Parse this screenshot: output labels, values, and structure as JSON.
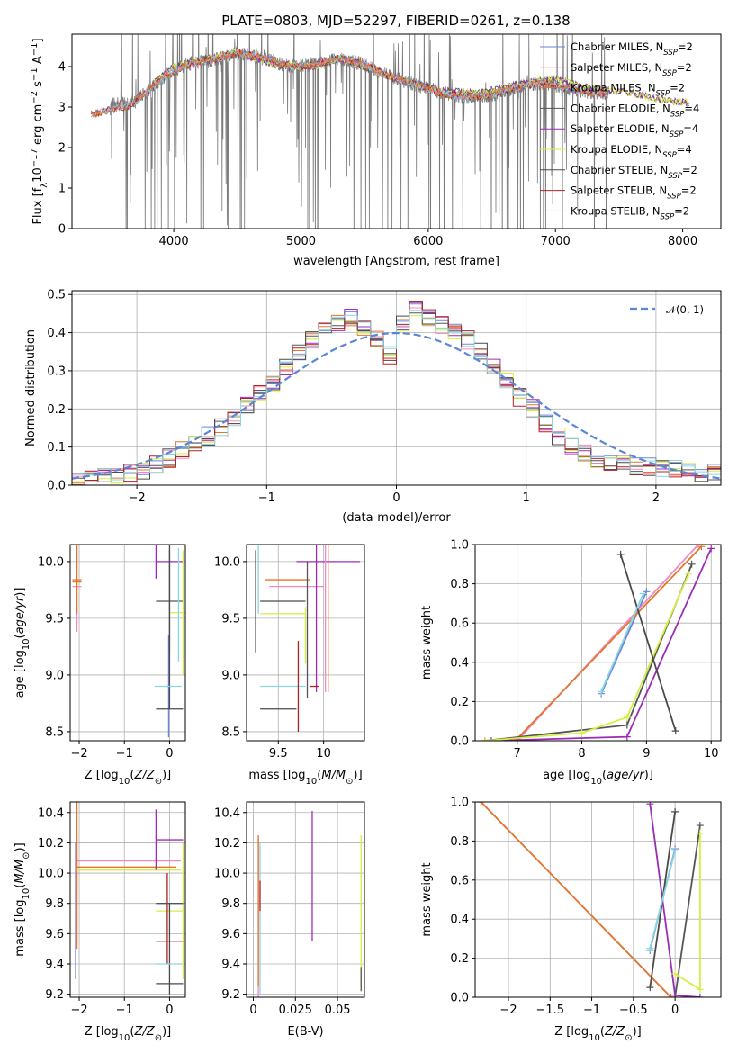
{
  "title": "PLATE=0803, MJD=52297, FIBERID=0261, z=0.138",
  "colors": [
    "#6a83e0",
    "#f18ac0",
    "#e1772b",
    "#555555",
    "#9b2db5",
    "#d4ef42",
    "#4a4a4a",
    "#b22222",
    "#8ad6dd"
  ],
  "legend": [
    {
      "pre": "Chabrier MILES, N",
      "sub": "SSP",
      "post": "=2"
    },
    {
      "pre": "Salpeter MILES, N",
      "sub": "SSP",
      "post": "=2"
    },
    {
      "pre": "Kroupa MILES, N",
      "sub": "SSP",
      "post": "=2"
    },
    {
      "pre": "Chabrier ELODIE, N",
      "sub": "SSP",
      "post": "=4"
    },
    {
      "pre": "Salpeter ELODIE, N",
      "sub": "SSP",
      "post": "=4"
    },
    {
      "pre": "Kroupa ELODIE, N",
      "sub": "SSP",
      "post": "=4"
    },
    {
      "pre": "Chabrier STELIB, N",
      "sub": "SSP",
      "post": "=2"
    },
    {
      "pre": "Salpeter STELIB, N",
      "sub": "SSP",
      "post": "=2"
    },
    {
      "pre": "Kroupa STELIB, N",
      "sub": "SSP",
      "post": "=2"
    }
  ],
  "legend_normal": "𝒩(0, 1)",
  "chart_data": [
    {
      "type": "line",
      "id": "spectrum",
      "xlabel": "wavelength [Angstrom, rest frame]",
      "ylabel": "Flux [f_λ 10^-17 erg cm^-2 s^-1 A^-1]",
      "xlim": [
        3200,
        8300
      ],
      "ylim": [
        0,
        4.8
      ],
      "xticks": [
        4000,
        5000,
        6000,
        7000,
        8000
      ],
      "yticks": [
        0,
        1,
        2,
        3,
        4
      ],
      "continuum": [
        [
          3350,
          3.0
        ],
        [
          3500,
          3.05
        ],
        [
          3650,
          3.1
        ],
        [
          3800,
          3.4
        ],
        [
          3950,
          3.8
        ],
        [
          4100,
          4.05
        ],
        [
          4300,
          4.15
        ],
        [
          4500,
          4.35
        ],
        [
          4700,
          4.2
        ],
        [
          4900,
          4.0
        ],
        [
          5100,
          4.05
        ],
        [
          5300,
          4.2
        ],
        [
          5500,
          4.05
        ],
        [
          5700,
          3.75
        ],
        [
          5900,
          3.55
        ],
        [
          6100,
          3.35
        ],
        [
          6300,
          3.25
        ],
        [
          6500,
          3.3
        ],
        [
          6700,
          3.5
        ],
        [
          6900,
          3.6
        ],
        [
          7100,
          3.45
        ],
        [
          7300,
          3.35
        ]
      ],
      "elodie_continuum": [
        [
          3850,
          3.6
        ],
        [
          4000,
          4.0
        ],
        [
          4200,
          4.15
        ],
        [
          4500,
          4.35
        ],
        [
          4800,
          4.05
        ],
        [
          5100,
          4.0
        ],
        [
          5300,
          4.2
        ],
        [
          5500,
          4.0
        ],
        [
          5800,
          3.65
        ],
        [
          6100,
          3.4
        ],
        [
          6400,
          3.35
        ],
        [
          6700,
          3.55
        ],
        [
          7000,
          3.7
        ],
        [
          7300,
          3.45
        ],
        [
          7600,
          3.35
        ],
        [
          7800,
          3.2
        ],
        [
          8050,
          3.1
        ]
      ]
    },
    {
      "type": "bar",
      "id": "residuals",
      "xlabel": "(data-model)/error",
      "ylabel": "Normed distribution",
      "xlim": [
        -2.5,
        2.5
      ],
      "ylim": [
        0,
        0.51
      ],
      "xticks": [
        -2,
        -1,
        0,
        1,
        2
      ],
      "yticks": [
        0.0,
        0.1,
        0.2,
        0.3,
        0.4,
        0.5
      ],
      "bin_width": 0.1,
      "bins_start": -2.5,
      "hist": [
        0.015,
        0.02,
        0.02,
        0.025,
        0.03,
        0.04,
        0.055,
        0.07,
        0.09,
        0.115,
        0.13,
        0.15,
        0.18,
        0.21,
        0.24,
        0.27,
        0.31,
        0.35,
        0.38,
        0.4,
        0.43,
        0.44,
        0.41,
        0.38,
        0.34,
        0.42,
        0.46,
        0.44,
        0.42,
        0.4,
        0.38,
        0.35,
        0.31,
        0.27,
        0.23,
        0.2,
        0.16,
        0.13,
        0.1,
        0.085,
        0.07,
        0.06,
        0.055,
        0.05,
        0.05,
        0.045,
        0.04,
        0.035,
        0.03,
        0.03
      ],
      "normal": {
        "mean": 0,
        "sigma": 1
      }
    },
    {
      "type": "scatter",
      "id": "age_vs_Z",
      "xlabel": "Z [log10(Z/Z⊙)]",
      "ylabel": "age [log10(age/yr)]",
      "xlim": [
        -2.2,
        0.35
      ],
      "ylim": [
        8.42,
        10.15
      ],
      "xticks": [
        -2,
        -1,
        0
      ],
      "yticks": [
        8.5,
        9.0,
        9.5,
        10.0
      ],
      "points": [
        {
          "x": -0.02,
          "y": 8.9,
          "xerr": 0.05,
          "yerr": 0.45,
          "c": 0
        },
        {
          "x": -2.05,
          "y": 9.78,
          "xerr": 0.1,
          "yerr": 0.4,
          "c": 1
        },
        {
          "x": -2.05,
          "y": 9.84,
          "xerr": 0.1,
          "yerr": 0.3,
          "c": 2
        },
        {
          "x": -2.05,
          "y": 9.82,
          "xerr": 0.1,
          "yerr": 0.0,
          "c": 2
        },
        {
          "x": 0.0,
          "y": 9.65,
          "xerr": 0.3,
          "yerr": 0.45,
          "c": 3
        },
        {
          "x": -0.3,
          "y": 10.0,
          "xerr": 0.0,
          "yerr": 0.15,
          "c": 4
        },
        {
          "x": 0.0,
          "y": 10.0,
          "xerr": 0.3,
          "yerr": 0.0,
          "c": 4
        },
        {
          "x": 0.3,
          "y": 9.55,
          "xerr": 0.3,
          "yerr": 0.55,
          "c": 5
        },
        {
          "x": 0.0,
          "y": 8.7,
          "xerr": 0.3,
          "yerr": 0.0,
          "c": 6
        },
        {
          "x": 0.0,
          "y": 10.0,
          "xerr": 0.0,
          "yerr": 1.3,
          "c": 6
        },
        {
          "x": -0.03,
          "y": 8.9,
          "xerr": 0.3,
          "yerr": 0.0,
          "c": 8
        },
        {
          "x": 0.2,
          "y": 9.62,
          "xerr": 0.0,
          "yerr": 0.5,
          "c": 8
        }
      ]
    },
    {
      "type": "scatter",
      "id": "age_vs_mass",
      "xlabel": "mass [log10(M/M⊙)]",
      "xlim": [
        9.15,
        10.45
      ],
      "ylim": [
        8.42,
        10.15
      ],
      "xticks": [
        9.5,
        10.0
      ],
      "yticks": [
        8.5,
        9.0,
        9.5,
        10.0
      ],
      "points": [
        {
          "x": 9.25,
          "y": 9.65,
          "xerr": 0.0,
          "yerr": 0.45,
          "c": 6
        },
        {
          "x": 9.55,
          "y": 9.65,
          "xerr": 0.25,
          "yerr": 0.0,
          "c": 6
        },
        {
          "x": 9.5,
          "y": 8.7,
          "xerr": 0.2,
          "yerr": 0.0,
          "c": 6
        },
        {
          "x": 9.28,
          "y": 9.84,
          "xerr": 0.0,
          "yerr": 0.3,
          "c": 8
        },
        {
          "x": 9.6,
          "y": 9.84,
          "xerr": 0.25,
          "yerr": 0.0,
          "c": 2
        },
        {
          "x": 9.7,
          "y": 9.78,
          "xerr": 0.3,
          "yerr": 0.0,
          "c": 1
        },
        {
          "x": 9.55,
          "y": 8.9,
          "xerr": 0.25,
          "yerr": 0.0,
          "c": 8
        },
        {
          "x": 9.55,
          "y": 9.54,
          "xerr": 0.25,
          "yerr": 0.0,
          "c": 5
        },
        {
          "x": 9.8,
          "y": 9.35,
          "xerr": 0.0,
          "yerr": 0.25,
          "c": 5
        },
        {
          "x": 10.05,
          "y": 10.0,
          "xerr": 0.35,
          "yerr": 0.0,
          "c": 4
        },
        {
          "x": 9.92,
          "y": 9.5,
          "xerr": 0.0,
          "yerr": 0.65,
          "c": 4
        },
        {
          "x": 9.72,
          "y": 8.9,
          "xerr": 0.0,
          "yerr": 0.4,
          "c": 7
        },
        {
          "x": 9.9,
          "y": 8.9,
          "xerr": 0.05,
          "yerr": 0.0,
          "c": 7
        },
        {
          "x": 10.02,
          "y": 9.5,
          "xerr": 0.0,
          "yerr": 0.65,
          "c": 1
        },
        {
          "x": 10.05,
          "y": 9.5,
          "xerr": 0.0,
          "yerr": 0.65,
          "c": 2
        },
        {
          "x": 9.82,
          "y": 9.4,
          "xerr": 0.0,
          "yerr": 0.6,
          "c": 3
        }
      ]
    },
    {
      "type": "line",
      "id": "weight_vs_age",
      "xlabel": "age [log10(age/yr)]",
      "ylabel": "mass weight",
      "xlim": [
        6.35,
        10.15
      ],
      "ylim": [
        0,
        1.0
      ],
      "xticks": [
        6,
        7,
        8,
        9,
        10
      ],
      "yticks": [
        0.0,
        0.2,
        0.4,
        0.6,
        0.8,
        1.0
      ],
      "series": [
        {
          "c": 0,
          "x": [
            8.3,
            9.0
          ],
          "y": [
            0.24,
            0.76
          ]
        },
        {
          "c": 1,
          "x": [
            7.0,
            9.8
          ],
          "y": [
            0.0,
            1.0
          ]
        },
        {
          "c": 2,
          "x": [
            7.0,
            9.85
          ],
          "y": [
            0.01,
            0.99
          ]
        },
        {
          "c": 3,
          "x": [
            6.5,
            8.7,
            9.7
          ],
          "y": [
            0.0,
            0.08,
            0.9
          ]
        },
        {
          "c": 4,
          "x": [
            6.6,
            8.7,
            10.0
          ],
          "y": [
            0.0,
            0.02,
            0.98
          ]
        },
        {
          "c": 5,
          "x": [
            6.5,
            8.0,
            8.7,
            9.65
          ],
          "y": [
            0.0,
            0.04,
            0.12,
            0.85
          ]
        },
        {
          "c": 6,
          "x": [
            8.6,
            9.45
          ],
          "y": [
            0.95,
            0.05
          ]
        },
        {
          "c": 8,
          "x": [
            8.3,
            8.95
          ],
          "y": [
            0.25,
            0.75
          ]
        }
      ]
    },
    {
      "type": "scatter",
      "id": "mass_vs_Z",
      "xlabel": "Z [log10(Z/Z⊙)]",
      "ylabel": "mass [log10(M/M⊙)]",
      "xlim": [
        -2.2,
        0.35
      ],
      "ylim": [
        9.18,
        10.47
      ],
      "xticks": [
        -2,
        -1,
        0
      ],
      "yticks": [
        9.2,
        9.4,
        9.6,
        9.8,
        10.0,
        10.2,
        10.4
      ],
      "points": [
        {
          "x": -2.05,
          "y": 10.08,
          "xerr": 0.0,
          "yerr": 0.18,
          "c": 1
        },
        {
          "x": -0.9,
          "y": 10.08,
          "xerr": 1.15,
          "yerr": 0.0,
          "c": 1
        },
        {
          "x": -2.05,
          "y": 10.05,
          "xerr": 0.0,
          "yerr": 0.55,
          "c": 2
        },
        {
          "x": -0.95,
          "y": 10.04,
          "xerr": 1.1,
          "yerr": 0.0,
          "c": 2
        },
        {
          "x": -2.08,
          "y": 9.75,
          "xerr": 0.0,
          "yerr": 0.45,
          "c": 0
        },
        {
          "x": -0.9,
          "y": 10.02,
          "xerr": 1.15,
          "yerr": 0.0,
          "c": 5
        },
        {
          "x": -0.3,
          "y": 10.22,
          "xerr": 0.0,
          "yerr": 0.2,
          "c": 4
        },
        {
          "x": 0.0,
          "y": 10.22,
          "xerr": 0.3,
          "yerr": 0.0,
          "c": 4
        },
        {
          "x": 0.3,
          "y": 9.75,
          "xerr": 0.0,
          "yerr": 0.45,
          "c": 5
        },
        {
          "x": 0.0,
          "y": 9.75,
          "xerr": 0.3,
          "yerr": 0.0,
          "c": 5
        },
        {
          "x": 0.0,
          "y": 9.55,
          "xerr": 0.3,
          "yerr": 0.0,
          "c": 7
        },
        {
          "x": -0.05,
          "y": 9.7,
          "xerr": 0.0,
          "yerr": 0.3,
          "c": 7
        },
        {
          "x": 0.0,
          "y": 9.8,
          "xerr": 0.3,
          "yerr": 0.0,
          "c": 3
        },
        {
          "x": 0.0,
          "y": 9.27,
          "xerr": 0.3,
          "yerr": 0.0,
          "c": 6
        },
        {
          "x": 0.0,
          "y": 9.5,
          "xerr": 0.0,
          "yerr": 0.3,
          "c": 6
        },
        {
          "x": -0.02,
          "y": 9.4,
          "xerr": 0.3,
          "yerr": 0.0,
          "c": 8
        }
      ]
    },
    {
      "type": "scatter",
      "id": "mass_vs_ebv",
      "xlabel": "E(B-V)",
      "xlim": [
        -0.004,
        0.066
      ],
      "ylim": [
        9.18,
        10.47
      ],
      "xticks": [
        0.0,
        0.025,
        0.05
      ],
      "yticks": [
        9.2,
        9.4,
        9.6,
        9.8,
        10.0,
        10.2,
        10.4
      ],
      "points": [
        {
          "x": 0.003,
          "y": 9.7,
          "xerr": 0.0,
          "yerr": 0.55,
          "c": 1
        },
        {
          "x": 0.003,
          "y": 9.75,
          "xerr": 0.0,
          "yerr": 0.5,
          "c": 2
        },
        {
          "x": 0.004,
          "y": 9.7,
          "xerr": 0.0,
          "yerr": 0.5,
          "c": 8
        },
        {
          "x": 0.004,
          "y": 9.85,
          "xerr": 0.0,
          "yerr": 0.1,
          "c": 7
        },
        {
          "x": 0.035,
          "y": 9.98,
          "xerr": 0.0,
          "yerr": 0.43,
          "c": 4
        },
        {
          "x": 0.064,
          "y": 9.75,
          "xerr": 0.0,
          "yerr": 0.5,
          "c": 5
        },
        {
          "x": 0.064,
          "y": 9.3,
          "xerr": 0.0,
          "yerr": 0.08,
          "c": 3
        }
      ]
    },
    {
      "type": "line",
      "id": "weight_vs_Z",
      "xlabel": "Z [log10(Z/Z⊙)]",
      "ylabel": "mass weight",
      "xlim": [
        -2.4,
        0.55
      ],
      "ylim": [
        0,
        1.0
      ],
      "xticks": [
        -2.0,
        -1.5,
        -1.0,
        -0.5,
        0.0
      ],
      "yticks": [
        0.0,
        0.2,
        0.4,
        0.6,
        0.8,
        1.0
      ],
      "series": [
        {
          "c": 0,
          "x": [
            -0.3,
            0.0
          ],
          "y": [
            0.24,
            0.76
          ]
        },
        {
          "c": 1,
          "x": [
            -2.33,
            -0.05
          ],
          "y": [
            1.0,
            0.0
          ]
        },
        {
          "c": 2,
          "x": [
            -2.33,
            -0.05
          ],
          "y": [
            1.0,
            0.0
          ]
        },
        {
          "c": 3,
          "x": [
            0.0,
            0.3
          ],
          "y": [
            0.0,
            0.88
          ]
        },
        {
          "c": 4,
          "x": [
            -0.3,
            0.0,
            0.3
          ],
          "y": [
            0.99,
            0.01,
            0.0
          ]
        },
        {
          "c": 5,
          "x": [
            0.0,
            0.3,
            0.3
          ],
          "y": [
            0.12,
            0.04,
            0.84
          ]
        },
        {
          "c": 6,
          "x": [
            -0.3,
            0.0
          ],
          "y": [
            0.05,
            0.95
          ]
        },
        {
          "c": 8,
          "x": [
            -0.3,
            0.0
          ],
          "y": [
            0.25,
            0.75
          ]
        }
      ]
    }
  ]
}
